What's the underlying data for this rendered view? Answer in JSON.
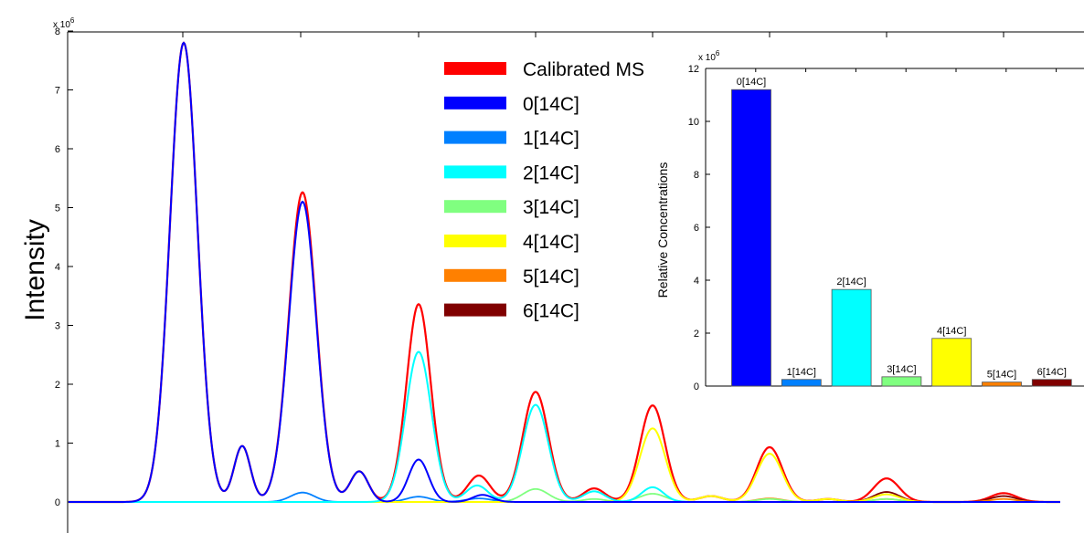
{
  "chart_data": [
    {
      "type": "line",
      "ylabel": "Intensity",
      "xlabel": "",
      "title": "",
      "y_exponent_label": "x 10",
      "y_exponent_power": "6",
      "ylim": [
        -0.3,
        8
      ],
      "yticks": [
        "0",
        "1",
        "2",
        "3",
        "4",
        "5",
        "6",
        "7",
        "8"
      ],
      "legend_position": "top-center",
      "series": [
        {
          "name": "Calibrated MS",
          "color": "#ff0000",
          "width": 2.2
        },
        {
          "name": "0[14C]",
          "color": "#0000ff",
          "width": 2
        },
        {
          "name": "1[14C]",
          "color": "#0080ff",
          "width": 1.8
        },
        {
          "name": "2[14C]",
          "color": "#00ffff",
          "width": 2
        },
        {
          "name": "3[14C]",
          "color": "#80ff80",
          "width": 1.8
        },
        {
          "name": "4[14C]",
          "color": "#ffff00",
          "width": 2
        },
        {
          "name": "5[14C]",
          "color": "#ff8000",
          "width": 1.8
        },
        {
          "name": "6[14C]",
          "color": "#800000",
          "width": 1.8
        }
      ]
    },
    {
      "type": "bar",
      "ylabel": "Relative Concentrations",
      "y_exponent_label": "x 10",
      "y_exponent_power": "6",
      "ylim": [
        0,
        12
      ],
      "yticks": [
        "0",
        "2",
        "4",
        "6",
        "8",
        "10",
        "12"
      ],
      "categories": [
        "0[14C]",
        "1[14C]",
        "2[14C]",
        "3[14C]",
        "4[14C]",
        "5[14C]",
        "6[14C]"
      ],
      "values": [
        11.2,
        0.25,
        3.65,
        0.35,
        1.8,
        0.15,
        0.25
      ],
      "colors": [
        "#0000ff",
        "#0080ff",
        "#00ffff",
        "#80ff80",
        "#ffff00",
        "#ff8000",
        "#800000"
      ]
    }
  ]
}
